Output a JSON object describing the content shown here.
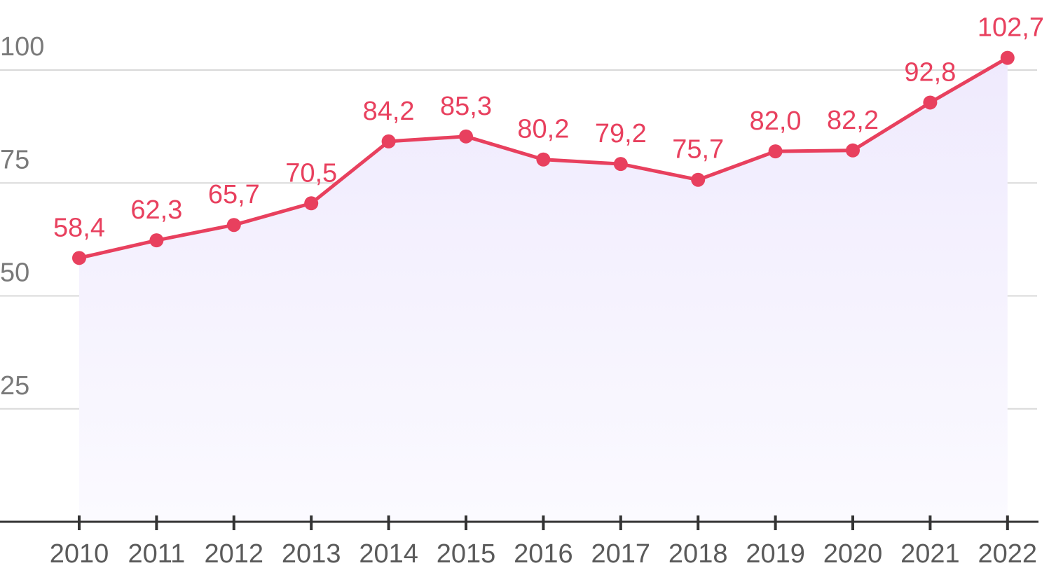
{
  "chart_data": {
    "type": "line",
    "title": "",
    "xlabel": "",
    "ylabel": "",
    "categories": [
      "2010",
      "2011",
      "2012",
      "2013",
      "2014",
      "2015",
      "2016",
      "2017",
      "2018",
      "2019",
      "2020",
      "2021",
      "2022"
    ],
    "series": [
      {
        "values": [
          58.4,
          62.3,
          65.7,
          70.5,
          84.2,
          85.3,
          80.2,
          79.2,
          75.7,
          82.0,
          82.2,
          92.8,
          102.7
        ],
        "labels": [
          "58,4",
          "62,3",
          "65,7",
          "70,5",
          "84,2",
          "85,3",
          "80,2",
          "79,2",
          "75,7",
          "82,0",
          "82,2",
          "92,8",
          "102,7"
        ]
      }
    ],
    "y_ticks": [
      25,
      50,
      75,
      100
    ],
    "y_tick_labels": [
      "25",
      "50",
      "75",
      "100"
    ],
    "ylim": [
      0,
      100
    ],
    "grid": true,
    "legend": "none",
    "area_fill": true,
    "colors": {
      "line": "#e8405e",
      "area_top": "#efeafd",
      "area_bottom": "#fbfaff",
      "grid": "#d9d9d9",
      "axis": "#333333"
    }
  }
}
